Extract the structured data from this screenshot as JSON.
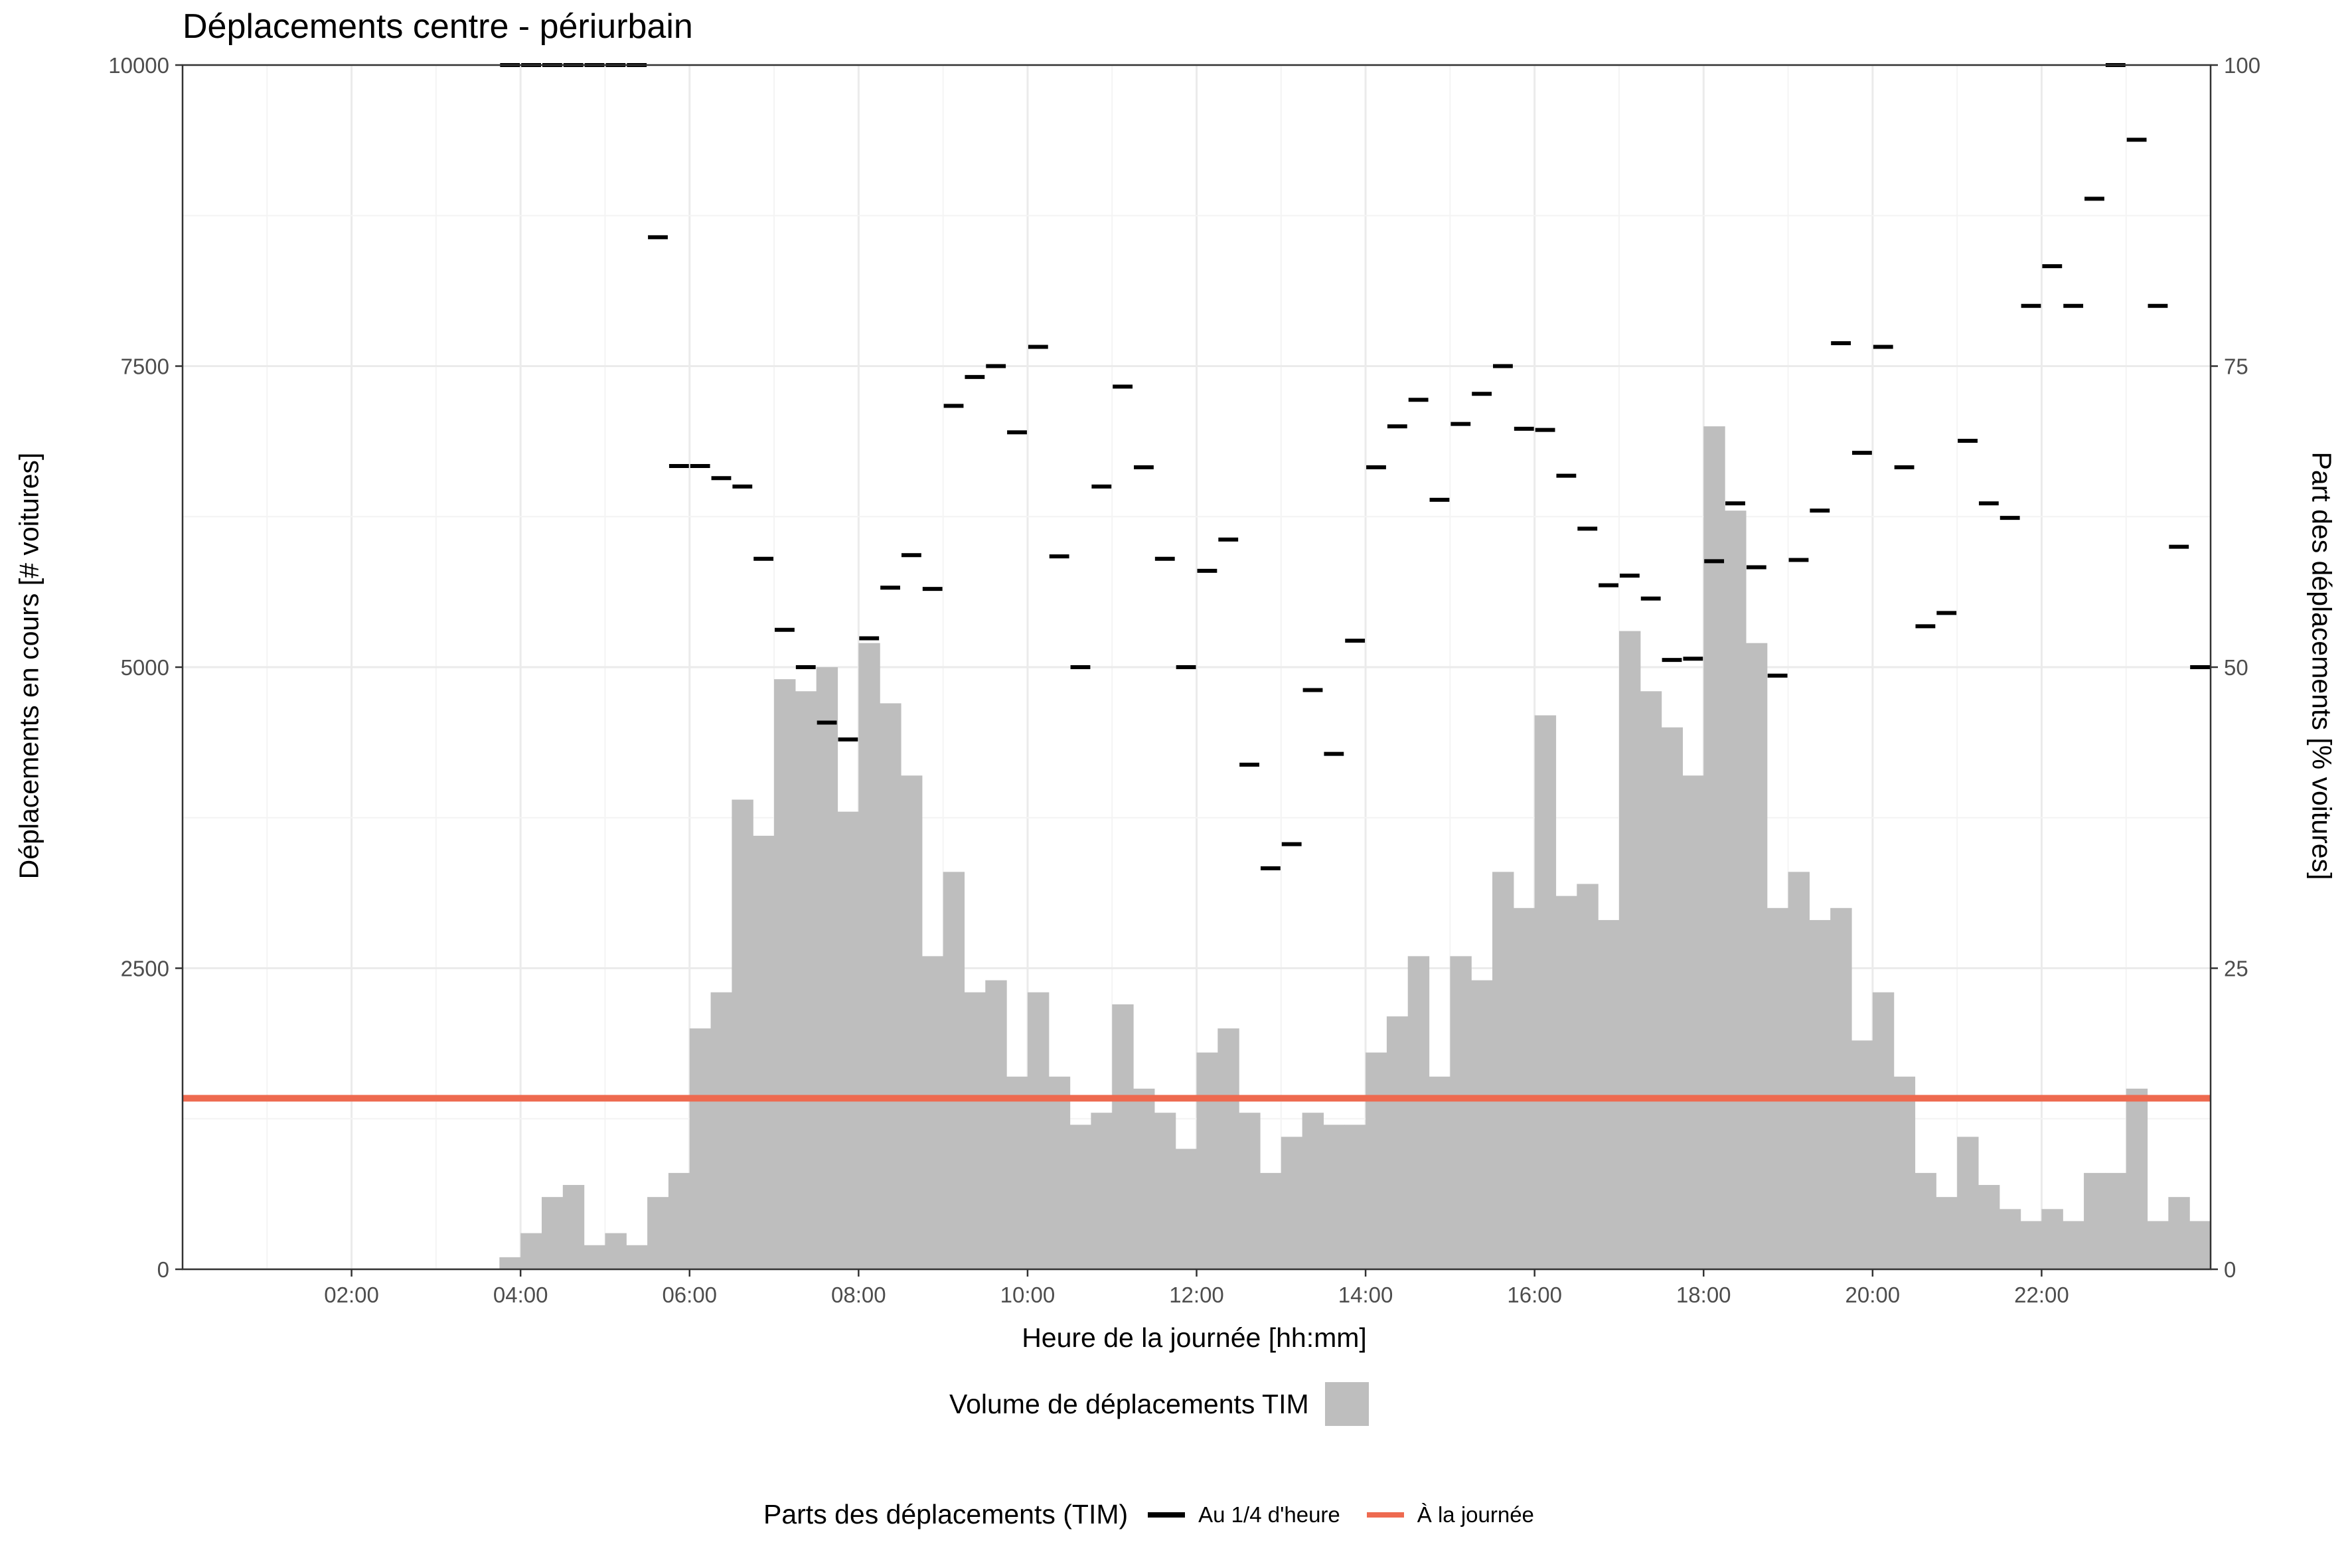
{
  "title": "Déplacements centre - périurbain",
  "colors": {
    "bars": "#bebebe",
    "quarter_marks": "#000000",
    "daily_line": "#ee6a50",
    "grid_major": "#ebebeb",
    "grid_minor": "#f4f4f4"
  },
  "legend": {
    "volume_title": "Volume de déplacements TIM",
    "parts_title": "Parts des déplacements (TIM)",
    "quarter_label": "Au 1/4 d'heure",
    "daily_label": "À la journée"
  },
  "chart_data": {
    "type": "bar",
    "title": "Déplacements centre - périurbain",
    "xlabel": "Heure de la journée [hh:mm]",
    "ylabel": "Déplacements en cours [# voitures]",
    "y2label": "Part des déplacements [% voitures]",
    "xlim": [
      "00:00",
      "24:00"
    ],
    "ylim": [
      0,
      10000
    ],
    "y2lim": [
      0,
      100
    ],
    "x_ticks": [
      "02:00",
      "04:00",
      "06:00",
      "08:00",
      "10:00",
      "12:00",
      "14:00",
      "16:00",
      "18:00",
      "20:00",
      "22:00"
    ],
    "y_ticks": [
      0,
      2500,
      5000,
      7500,
      10000
    ],
    "y2_ticks": [
      0,
      25,
      50,
      75,
      100
    ],
    "grid": true,
    "interval_minutes": 15,
    "bars": {
      "name": "Volume de déplacements TIM",
      "start": "03:45",
      "values": [
        100,
        300,
        600,
        700,
        200,
        300,
        200,
        600,
        800,
        2000,
        2300,
        3900,
        3600,
        4900,
        4800,
        5000,
        3800,
        5200,
        4700,
        4100,
        2600,
        3300,
        2300,
        2400,
        1600,
        2300,
        1600,
        1200,
        1300,
        2200,
        1500,
        1300,
        1000,
        1800,
        2000,
        1300,
        800,
        1100,
        1300,
        1200,
        1200,
        1800,
        2100,
        2600,
        1600,
        2600,
        2400,
        3300,
        3000,
        4600,
        3100,
        3200,
        2900,
        5300,
        4800,
        4500,
        4100,
        7000,
        6300,
        5200,
        3000,
        3300,
        2900,
        3000,
        1900,
        2300,
        1600,
        800,
        600,
        1100,
        700,
        500,
        400,
        500,
        400,
        800,
        800,
        1500,
        400,
        600,
        400
      ]
    },
    "quarter_share": {
      "name": "Au 1/4 d'heure",
      "points": [
        [
          "03:45",
          100
        ],
        [
          "04:00",
          100
        ],
        [
          "04:15",
          100
        ],
        [
          "04:30",
          100
        ],
        [
          "04:45",
          100
        ],
        [
          "05:00",
          100
        ],
        [
          "05:15",
          100
        ],
        [
          "05:30",
          85.7
        ],
        [
          "05:45",
          66.7
        ],
        [
          "06:00",
          66.7
        ],
        [
          "06:15",
          65.7
        ],
        [
          "06:30",
          65.0
        ],
        [
          "06:45",
          59.0
        ],
        [
          "07:00",
          53.1
        ],
        [
          "07:15",
          50.0
        ],
        [
          "07:30",
          45.4
        ],
        [
          "07:45",
          44.0
        ],
        [
          "08:00",
          52.4
        ],
        [
          "08:15",
          56.6
        ],
        [
          "08:30",
          59.3
        ],
        [
          "08:45",
          56.5
        ],
        [
          "09:00",
          71.7
        ],
        [
          "09:15",
          74.1
        ],
        [
          "09:30",
          75.0
        ],
        [
          "09:45",
          69.5
        ],
        [
          "10:00",
          76.6
        ],
        [
          "10:15",
          59.2
        ],
        [
          "10:30",
          50.0
        ],
        [
          "10:45",
          65.0
        ],
        [
          "11:00",
          73.3
        ],
        [
          "11:15",
          66.6
        ],
        [
          "11:30",
          59.0
        ],
        [
          "11:45",
          50.0
        ],
        [
          "12:00",
          58.0
        ],
        [
          "12:15",
          60.6
        ],
        [
          "12:30",
          41.9
        ],
        [
          "12:45",
          33.3
        ],
        [
          "13:00",
          35.3
        ],
        [
          "13:15",
          48.1
        ],
        [
          "13:30",
          42.8
        ],
        [
          "13:45",
          52.2
        ],
        [
          "14:00",
          66.6
        ],
        [
          "14:15",
          70.0
        ],
        [
          "14:30",
          72.2
        ],
        [
          "14:45",
          63.9
        ],
        [
          "15:00",
          70.2
        ],
        [
          "15:15",
          72.7
        ],
        [
          "15:30",
          75.0
        ],
        [
          "15:45",
          69.8
        ],
        [
          "16:00",
          69.7
        ],
        [
          "16:15",
          65.9
        ],
        [
          "16:30",
          61.5
        ],
        [
          "16:45",
          56.8
        ],
        [
          "17:00",
          57.6
        ],
        [
          "17:15",
          55.7
        ],
        [
          "17:30",
          50.6
        ],
        [
          "17:45",
          50.7
        ],
        [
          "18:00",
          58.8
        ],
        [
          "18:15",
          63.6
        ],
        [
          "18:30",
          58.3
        ],
        [
          "18:45",
          49.3
        ],
        [
          "19:00",
          58.9
        ],
        [
          "19:15",
          63.0
        ],
        [
          "19:30",
          76.9
        ],
        [
          "19:45",
          67.8
        ],
        [
          "20:00",
          76.6
        ],
        [
          "20:15",
          66.6
        ],
        [
          "20:30",
          53.4
        ],
        [
          "20:45",
          54.5
        ],
        [
          "21:00",
          68.8
        ],
        [
          "21:15",
          63.6
        ],
        [
          "21:30",
          62.4
        ],
        [
          "21:45",
          80.0
        ],
        [
          "22:00",
          83.3
        ],
        [
          "22:15",
          80.0
        ],
        [
          "22:30",
          88.9
        ],
        [
          "22:45",
          100
        ],
        [
          "23:00",
          93.8
        ],
        [
          "23:15",
          80.0
        ],
        [
          "23:30",
          60.0
        ],
        [
          "23:45",
          50.0
        ]
      ]
    },
    "daily_share": {
      "name": "À la journée",
      "value": 14.2
    },
    "legend": [
      "Volume de déplacements TIM",
      "Parts des déplacements (TIM)",
      "Au 1/4 d'heure",
      "À la journée"
    ]
  }
}
